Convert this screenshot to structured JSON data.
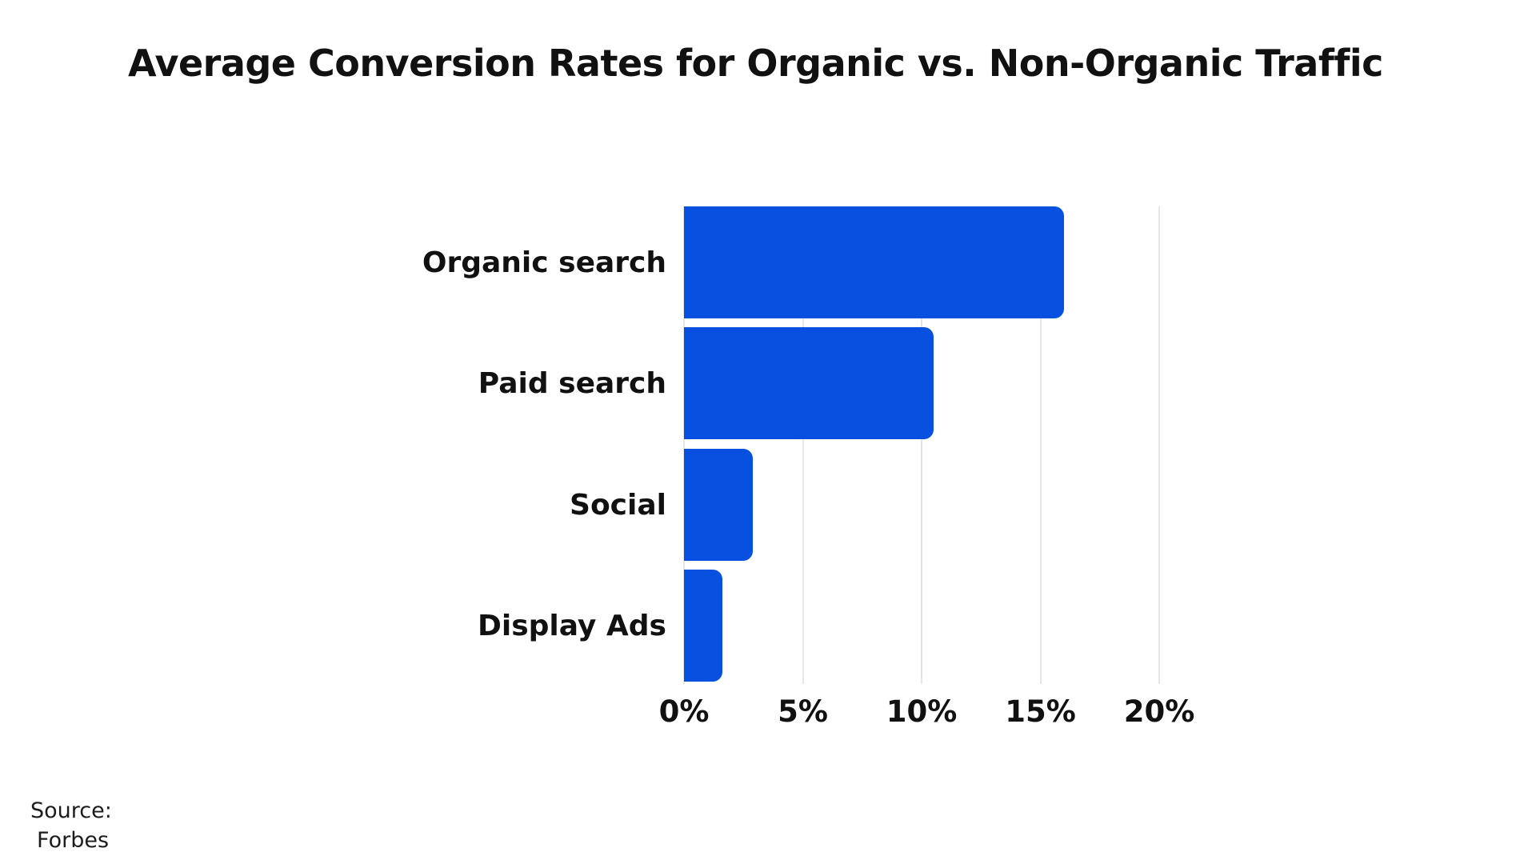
{
  "chart_data": {
    "type": "bar",
    "orientation": "horizontal",
    "title": "Average Conversion Rates for Organic vs. Non-Organic Traffic",
    "categories": [
      "Organic search",
      "Paid search",
      "Social",
      "Display Ads"
    ],
    "values": [
      16.0,
      10.5,
      2.9,
      1.6
    ],
    "unit": "%",
    "xlim": [
      0,
      20
    ],
    "x_tick_values": [
      0,
      5,
      10,
      15,
      20
    ],
    "x_tick_labels": [
      "0%",
      "5%",
      "10%",
      "15%",
      "20%"
    ],
    "grid": true,
    "legend": false,
    "bar_color": "#0750e0",
    "gridline_color": "#e4e6e9",
    "text_color": "#111111"
  },
  "source": {
    "label": "Source:",
    "name": "Forbes"
  }
}
